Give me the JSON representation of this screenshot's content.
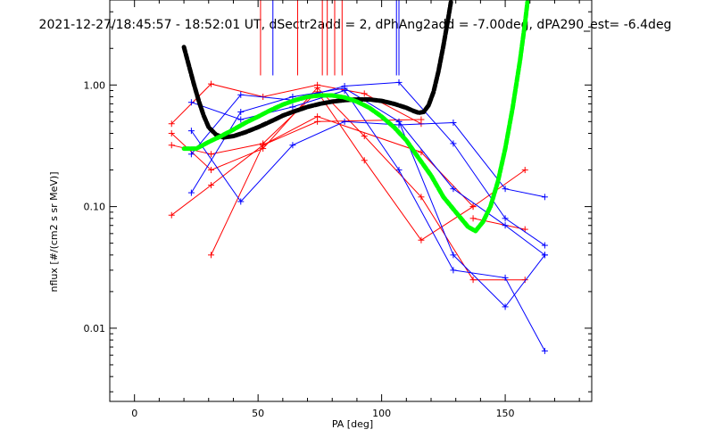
{
  "chart_data": {
    "type": "scatter",
    "title": "2021-12-27/18:45:57 - 18:52:01 UT, dSectr2add = 2, dPhAng2add = -7.00deg, dPA290_est=  -6.4deg",
    "xlabel": "PA [deg]",
    "ylabel": "nflux [#/(cm2 s sr MeV)]",
    "xlim": [
      -10,
      185
    ],
    "ylim": [
      0.0025,
      5.0
    ],
    "yscale": "log",
    "x_ticks": [
      0,
      50,
      100,
      150
    ],
    "x_tick_labels": [
      "0",
      "50",
      "100",
      "150"
    ],
    "y_ticks": [
      0.01,
      0.1,
      1.0
    ],
    "y_tick_labels": [
      "0.01",
      "0.10",
      "1.00"
    ],
    "grid": false,
    "colors": {
      "red": "#ff0000",
      "blue": "#0000ff",
      "black": "#000000",
      "green": "#00ff00"
    },
    "vertical_markers": {
      "red": [
        51,
        66,
        76,
        78,
        81,
        84
      ],
      "blue": [
        56,
        106,
        107
      ],
      "y_bottom": 1.2
    },
    "series": [
      {
        "color": "red",
        "points": [
          [
            15,
            0.48
          ],
          [
            31,
            1.02
          ],
          [
            52,
            0.8
          ],
          [
            74,
            1.0
          ],
          [
            93,
            0.85
          ],
          [
            116,
            0.48
          ]
        ]
      },
      {
        "color": "red",
        "points": [
          [
            15,
            0.4
          ],
          [
            31,
            0.2
          ],
          [
            52,
            0.3
          ],
          [
            74,
            0.95
          ],
          [
            93,
            0.38
          ],
          [
            116,
            0.12
          ],
          [
            137,
            0.025
          ],
          [
            158,
            0.025
          ]
        ]
      },
      {
        "color": "red",
        "points": [
          [
            15,
            0.32
          ],
          [
            31,
            0.27
          ],
          [
            52,
            0.33
          ],
          [
            74,
            0.88
          ],
          [
            93,
            0.24
          ],
          [
            116,
            0.053
          ],
          [
            137,
            0.1
          ]
        ]
      },
      {
        "color": "red",
        "points": [
          [
            15,
            0.085
          ],
          [
            31,
            0.15
          ],
          [
            52,
            0.32
          ],
          [
            74,
            0.55
          ],
          [
            116,
            0.28
          ],
          [
            137,
            0.1
          ],
          [
            158,
            0.2
          ]
        ]
      },
      {
        "color": "red",
        "points": [
          [
            31,
            0.04
          ],
          [
            52,
            0.32
          ],
          [
            74,
            0.5
          ],
          [
            116,
            0.52
          ]
        ]
      },
      {
        "color": "red",
        "points": [
          [
            137,
            0.08
          ],
          [
            158,
            0.065
          ]
        ]
      },
      {
        "color": "blue",
        "points": [
          [
            23,
            0.42
          ],
          [
            43,
            0.11
          ],
          [
            64,
            0.32
          ],
          [
            85,
            0.5
          ],
          [
            107,
            0.47
          ],
          [
            129,
            0.49
          ],
          [
            150,
            0.14
          ],
          [
            166,
            0.12
          ]
        ]
      },
      {
        "color": "blue",
        "points": [
          [
            23,
            0.27
          ],
          [
            43,
            0.83
          ],
          [
            64,
            0.75
          ],
          [
            85,
            0.98
          ],
          [
            107,
            1.05
          ],
          [
            129,
            0.33
          ],
          [
            150,
            0.08
          ],
          [
            166,
            0.048
          ]
        ]
      },
      {
        "color": "blue",
        "points": [
          [
            23,
            0.13
          ],
          [
            43,
            0.6
          ],
          [
            64,
            0.8
          ],
          [
            85,
            0.94
          ],
          [
            107,
            0.5
          ],
          [
            129,
            0.14
          ],
          [
            150,
            0.07
          ],
          [
            166,
            0.04
          ]
        ]
      },
      {
        "color": "blue",
        "points": [
          [
            23,
            0.72
          ],
          [
            43,
            0.52
          ],
          [
            64,
            0.66
          ],
          [
            85,
            0.9
          ],
          [
            107,
            0.2
          ],
          [
            129,
            0.03
          ],
          [
            150,
            0.026
          ],
          [
            166,
            0.0065
          ]
        ]
      },
      {
        "color": "blue",
        "points": [
          [
            107,
            0.5
          ],
          [
            129,
            0.04
          ],
          [
            150,
            0.015
          ],
          [
            166,
            0.04
          ]
        ]
      }
    ],
    "fit_curves": [
      {
        "color": "black",
        "style": "thick-dashed",
        "points": [
          [
            20,
            2.05
          ],
          [
            22,
            1.45
          ],
          [
            24,
            1.02
          ],
          [
            26,
            0.74
          ],
          [
            28,
            0.56
          ],
          [
            30,
            0.45
          ],
          [
            33,
            0.39
          ],
          [
            36,
            0.37
          ],
          [
            40,
            0.38
          ],
          [
            45,
            0.41
          ],
          [
            50,
            0.45
          ],
          [
            55,
            0.5
          ],
          [
            60,
            0.56
          ],
          [
            65,
            0.61
          ],
          [
            70,
            0.66
          ],
          [
            75,
            0.7
          ],
          [
            80,
            0.73
          ],
          [
            85,
            0.75
          ],
          [
            90,
            0.76
          ],
          [
            95,
            0.76
          ],
          [
            100,
            0.74
          ],
          [
            105,
            0.7
          ],
          [
            110,
            0.65
          ],
          [
            113,
            0.61
          ],
          [
            115,
            0.59
          ],
          [
            117,
            0.6
          ],
          [
            119,
            0.68
          ],
          [
            121,
            0.88
          ],
          [
            123,
            1.3
          ],
          [
            125,
            2.1
          ],
          [
            127,
            3.6
          ],
          [
            128,
            4.8
          ]
        ]
      },
      {
        "color": "green",
        "style": "thick-dashed",
        "points": [
          [
            20,
            0.3
          ],
          [
            25,
            0.3
          ],
          [
            30,
            0.34
          ],
          [
            35,
            0.38
          ],
          [
            40,
            0.43
          ],
          [
            45,
            0.49
          ],
          [
            50,
            0.55
          ],
          [
            55,
            0.62
          ],
          [
            60,
            0.69
          ],
          [
            65,
            0.75
          ],
          [
            70,
            0.8
          ],
          [
            75,
            0.82
          ],
          [
            80,
            0.82
          ],
          [
            85,
            0.79
          ],
          [
            90,
            0.73
          ],
          [
            95,
            0.65
          ],
          [
            100,
            0.55
          ],
          [
            105,
            0.45
          ],
          [
            110,
            0.35
          ],
          [
            115,
            0.25
          ],
          [
            120,
            0.18
          ],
          [
            125,
            0.12
          ],
          [
            130,
            0.09
          ],
          [
            135,
            0.068
          ],
          [
            138,
            0.063
          ],
          [
            141,
            0.075
          ],
          [
            144,
            0.1
          ],
          [
            147,
            0.16
          ],
          [
            150,
            0.3
          ],
          [
            153,
            0.65
          ],
          [
            156,
            1.6
          ],
          [
            158,
            3.2
          ],
          [
            159,
            4.8
          ]
        ]
      }
    ]
  }
}
